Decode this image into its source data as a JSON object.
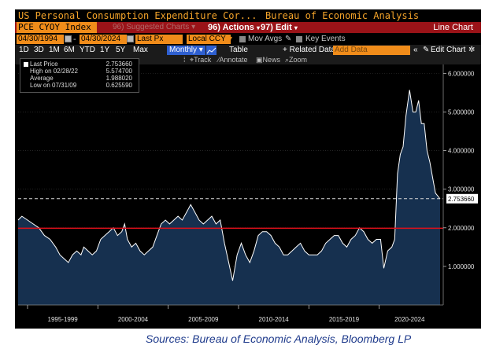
{
  "window": {
    "title": "US Personal Consumption Expenditure Cor...",
    "source": "Bureau of Economic Analysis"
  },
  "command_bar": {
    "ticker": "PCE CYOY Index",
    "suggested_label": "Suggested Charts",
    "suggested_num": "96)",
    "actions_num": "96)",
    "actions_label": "Actions",
    "edit_num": "97)",
    "edit_label": "Edit",
    "chart_type": "Line Chart"
  },
  "date_bar": {
    "start_date": "04/30/1994",
    "end_date": "04/30/2024",
    "field": "Last Px",
    "currency": "Local CCY",
    "mov_avgs": "Mov Avgs",
    "key_events": "Key Events"
  },
  "range_bar": {
    "ranges": [
      "1D",
      "3D",
      "1M",
      "6M",
      "YTD",
      "1Y",
      "5Y",
      "Max"
    ],
    "frequency": "Monthly",
    "table": "Table",
    "related_data": "+ Related Data",
    "add_data_placeholder": "Add Data",
    "collapse": "«",
    "edit_chart": "Edit Chart"
  },
  "tools_bar": {
    "track": "Track",
    "annotate": "Annotate",
    "news": "News",
    "zoom": "Zoom"
  },
  "legend": {
    "last_price_label": "Last Price",
    "last_price_value": "2.753660",
    "high_label": "High on 02/28/22",
    "high_value": "5.574700",
    "average_label": "Average",
    "average_value": "1.988020",
    "low_label": "Low on 07/31/09",
    "low_value": "0.625590"
  },
  "chart_data": {
    "type": "area",
    "x_ticks": [
      "1995-1999",
      "2000-2004",
      "2005-2009",
      "2010-2014",
      "2015-2019",
      "2020-2024"
    ],
    "y_ticks": [
      1,
      2,
      3,
      4,
      5,
      6
    ],
    "y_tick_labels": [
      "1.000000",
      "2.000000",
      "3.000000",
      "4.000000",
      "5.000000",
      "6.000000"
    ],
    "ylim": [
      0,
      6.15
    ],
    "xlim": [
      1994.33,
      2024.33
    ],
    "last_price_label": "2.753660",
    "average_line": 1.98802,
    "last_price": 2.75366,
    "series": [
      {
        "x": [
          1994.33,
          1994.6,
          1995.0,
          1995.4,
          1995.8,
          1996.2,
          1996.6,
          1997.0,
          1997.3,
          1997.6,
          1997.9,
          1998.2,
          1998.5,
          1998.8,
          1999.0,
          1999.3,
          1999.6,
          1999.9,
          2000.2,
          2000.5,
          2000.8,
          2001.1,
          2001.4,
          2001.7,
          2001.9,
          2002.1,
          2002.4,
          2002.7,
          2003.0,
          2003.3,
          2003.6,
          2003.9,
          2004.2,
          2004.5,
          2004.8,
          2005.1,
          2005.4,
          2005.7,
          2006.0,
          2006.3,
          2006.6,
          2006.9,
          2007.2,
          2007.5,
          2007.8,
          2008.1,
          2008.4,
          2008.7,
          2009.0,
          2009.3,
          2009.58,
          2009.9,
          2010.2,
          2010.5,
          2010.8,
          2011.1,
          2011.4,
          2011.7,
          2012.0,
          2012.3,
          2012.6,
          2012.9,
          2013.2,
          2013.5,
          2013.8,
          2014.1,
          2014.4,
          2014.7,
          2015.0,
          2015.3,
          2015.6,
          2015.9,
          2016.2,
          2016.5,
          2016.8,
          2017.1,
          2017.4,
          2017.7,
          2018.0,
          2018.3,
          2018.6,
          2018.9,
          2019.2,
          2019.5,
          2019.8,
          2020.1,
          2020.33,
          2020.6,
          2020.9,
          2021.1,
          2021.3,
          2021.5,
          2021.7,
          2021.9,
          2022.16,
          2022.4,
          2022.6,
          2022.8,
          2023.0,
          2023.2,
          2023.4,
          2023.6,
          2023.8,
          2024.0,
          2024.33
        ],
        "y": [
          2.2,
          2.3,
          2.2,
          2.1,
          2.0,
          1.8,
          1.7,
          1.5,
          1.3,
          1.2,
          1.1,
          1.3,
          1.4,
          1.3,
          1.5,
          1.4,
          1.3,
          1.4,
          1.7,
          1.8,
          1.9,
          2.0,
          1.8,
          1.9,
          2.1,
          1.7,
          1.5,
          1.6,
          1.4,
          1.3,
          1.4,
          1.5,
          1.8,
          2.1,
          2.2,
          2.1,
          2.2,
          2.3,
          2.2,
          2.4,
          2.6,
          2.4,
          2.2,
          2.1,
          2.2,
          2.3,
          2.1,
          2.2,
          1.6,
          1.1,
          0.63,
          1.3,
          1.6,
          1.3,
          1.1,
          1.4,
          1.8,
          1.9,
          1.9,
          1.8,
          1.6,
          1.5,
          1.3,
          1.3,
          1.4,
          1.5,
          1.6,
          1.4,
          1.3,
          1.3,
          1.3,
          1.4,
          1.6,
          1.7,
          1.8,
          1.8,
          1.6,
          1.5,
          1.7,
          1.8,
          2.0,
          1.9,
          1.7,
          1.6,
          1.7,
          1.7,
          0.95,
          1.4,
          1.5,
          1.7,
          3.4,
          3.9,
          4.1,
          4.9,
          5.57,
          5.0,
          5.0,
          5.3,
          4.7,
          4.7,
          4.0,
          3.7,
          3.3,
          2.9,
          2.75
        ]
      }
    ]
  }
}
